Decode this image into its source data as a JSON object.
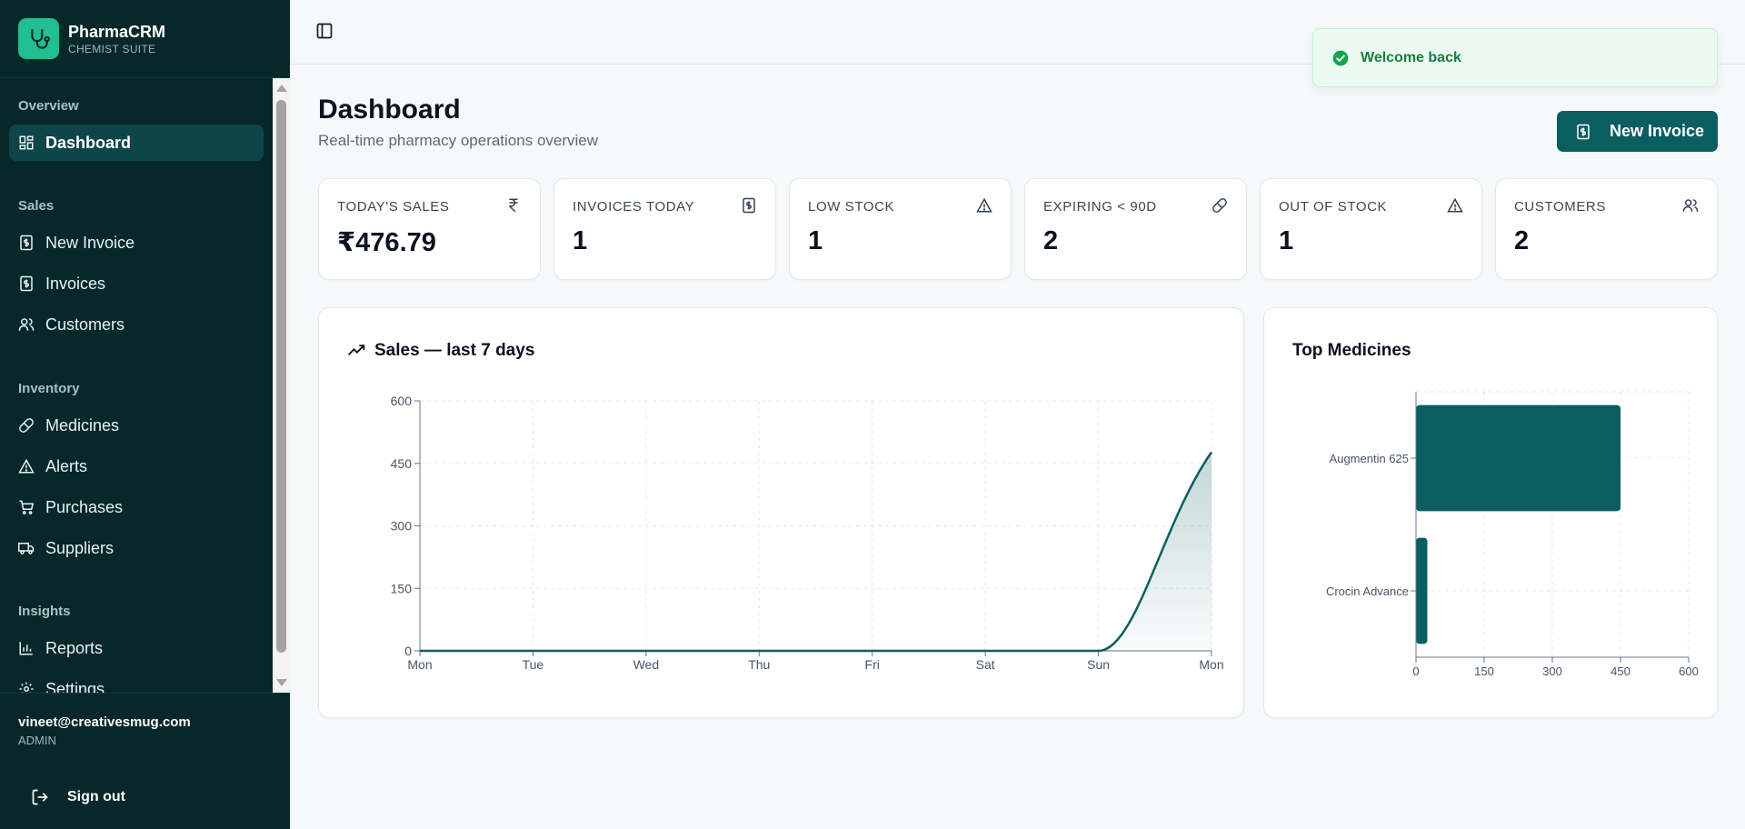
{
  "brand": {
    "name": "PharmaCRM",
    "subtitle": "CHEMIST SUITE"
  },
  "sidebar": {
    "groups": [
      {
        "title": "Overview"
      },
      {
        "title": "Sales"
      },
      {
        "title": "Inventory"
      },
      {
        "title": "Insights"
      }
    ],
    "items": [
      {
        "label": "Dashboard",
        "icon": "dashboard-icon",
        "active": true
      },
      {
        "label": "New Invoice",
        "icon": "invoice-icon"
      },
      {
        "label": "Invoices",
        "icon": "invoice-icon"
      },
      {
        "label": "Customers",
        "icon": "users-icon"
      },
      {
        "label": "Medicines",
        "icon": "pill-icon"
      },
      {
        "label": "Alerts",
        "icon": "alert-icon"
      },
      {
        "label": "Purchases",
        "icon": "cart-icon"
      },
      {
        "label": "Suppliers",
        "icon": "truck-icon"
      },
      {
        "label": "Reports",
        "icon": "bar-chart-icon"
      },
      {
        "label": "Settings",
        "icon": "gear-icon"
      }
    ]
  },
  "user": {
    "email": "vineet@creativesmug.com",
    "role": "ADMIN",
    "signout_label": "Sign out"
  },
  "toast": {
    "message": "Welcome back"
  },
  "header": {
    "title": "Dashboard",
    "subtitle": "Real-time pharmacy operations overview",
    "new_invoice_label": "New Invoice"
  },
  "stats": [
    {
      "label": "TODAY'S SALES",
      "value": "₹476.79",
      "icon": "rupee-icon"
    },
    {
      "label": "INVOICES TODAY",
      "value": "1",
      "icon": "invoice-icon"
    },
    {
      "label": "LOW STOCK",
      "value": "1",
      "icon": "alert-icon"
    },
    {
      "label": "EXPIRING < 90D",
      "value": "2",
      "icon": "pill-icon"
    },
    {
      "label": "OUT OF STOCK",
      "value": "1",
      "icon": "alert-icon"
    },
    {
      "label": "CUSTOMERS",
      "value": "2",
      "icon": "users-icon"
    }
  ],
  "colors": {
    "accent": "#0b5e60",
    "sidebar_bg": "#06282b",
    "toast_green": "#15803d",
    "brand_green": "#1fbf8f"
  },
  "sales_panel": {
    "title": "Sales — last 7 days"
  },
  "top_panel": {
    "title": "Top Medicines"
  },
  "chart_data": [
    {
      "type": "area",
      "title": "Sales — last 7 days",
      "x": [
        "Mon",
        "Tue",
        "Wed",
        "Thu",
        "Fri",
        "Sat",
        "Sun",
        "Mon"
      ],
      "series": [
        {
          "values": [
            0,
            0,
            0,
            0,
            0,
            0,
            0,
            476.79
          ]
        }
      ],
      "ylim": [
        0,
        600
      ],
      "yticks": [
        0,
        150,
        300,
        450,
        600
      ],
      "grid": true
    },
    {
      "type": "bar",
      "orientation": "horizontal",
      "title": "Top Medicines",
      "categories": [
        "Augmentin 625",
        "Crocin Advance"
      ],
      "values": [
        450,
        25
      ],
      "xlim": [
        0,
        600
      ],
      "xticks": [
        0,
        150,
        300,
        450,
        600
      ],
      "grid": true
    }
  ]
}
